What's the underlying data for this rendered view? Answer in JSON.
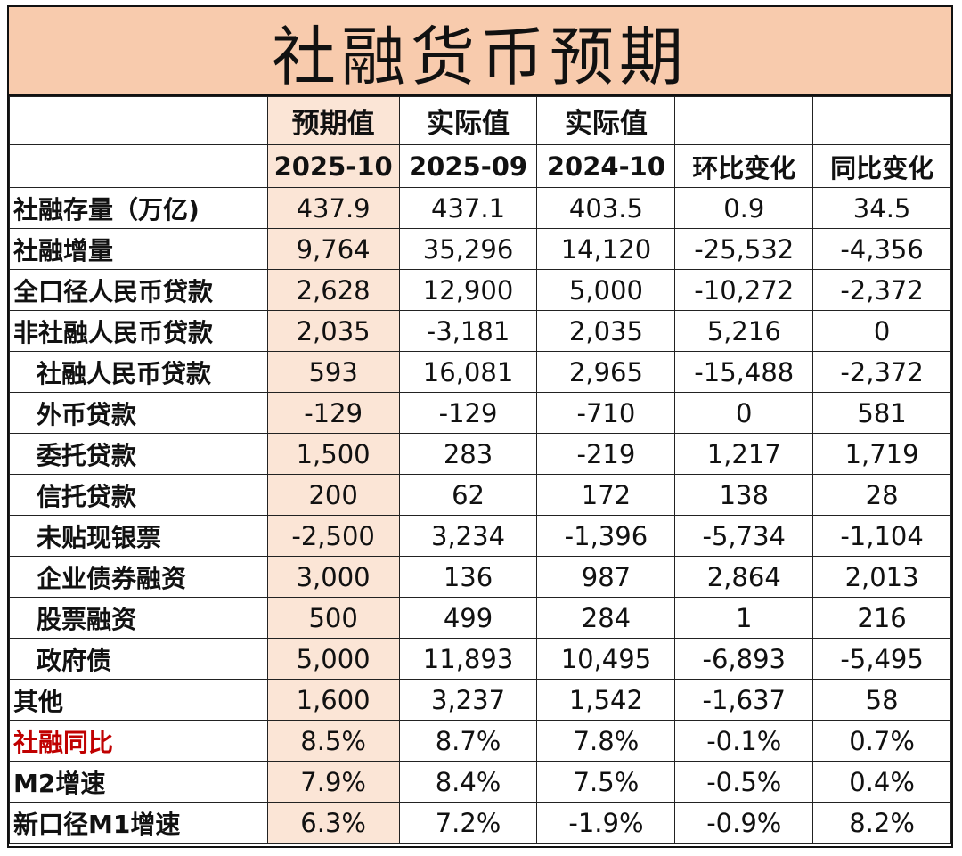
{
  "title": "社融货币预期",
  "columns": {
    "header_row1": [
      "",
      "预期值",
      "实际值",
      "实际值",
      "",
      ""
    ],
    "header_row2": [
      "",
      "2025-10",
      "2025-09",
      "2024-10",
      "环比变化",
      "同比变化"
    ]
  },
  "rows": [
    {
      "label": "社融存量（万亿)",
      "values": [
        "437.9",
        "437.1",
        "403.5",
        "0.9",
        "34.5"
      ]
    },
    {
      "label": "社融增量",
      "values": [
        "9,764",
        "35,296",
        "14,120",
        "-25,532",
        "-4,356"
      ]
    },
    {
      "label": "全口径人民币贷款",
      "values": [
        "2,628",
        "12,900",
        "5,000",
        "-10,272",
        "-2,372"
      ]
    },
    {
      "label": "非社融人民币贷款",
      "values": [
        "2,035",
        "-3,181",
        "2,035",
        "5,216",
        "0"
      ]
    },
    {
      "label": "社融人民币贷款",
      "values": [
        "593",
        "16,081",
        "2,965",
        "-15,488",
        "-2,372"
      ]
    },
    {
      "label": "外币贷款",
      "values": [
        "-129",
        "-129",
        "-710",
        "0",
        "581"
      ]
    },
    {
      "label": "委托贷款",
      "values": [
        "1,500",
        "283",
        "-219",
        "1,217",
        "1,719"
      ]
    },
    {
      "label": "信托贷款",
      "values": [
        "200",
        "62",
        "172",
        "138",
        "28"
      ]
    },
    {
      "label": "未贴现银票",
      "values": [
        "-2,500",
        "3,234",
        "-1,396",
        "-5,734",
        "-1,104"
      ]
    },
    {
      "label": "企业债券融资",
      "values": [
        "3,000",
        "136",
        "987",
        "2,864",
        "2,013"
      ]
    },
    {
      "label": "股票融资",
      "values": [
        "500",
        "499",
        "284",
        "1",
        "216"
      ]
    },
    {
      "label": "政府债",
      "values": [
        "5,000",
        "11,893",
        "10,495",
        "-6,893",
        "-5,495"
      ]
    },
    {
      "label": "其他",
      "values": [
        "1,600",
        "3,237",
        "1,542",
        "-1,637",
        "58"
      ]
    },
    {
      "label": "社融同比",
      "values": [
        "8.5%",
        "8.7%",
        "7.8%",
        "-0.1%",
        "0.7%"
      ]
    },
    {
      "label": "M2增速",
      "values": [
        "7.9%",
        "8.4%",
        "7.5%",
        "-0.5%",
        "0.4%"
      ]
    },
    {
      "label": "新口径M1增速",
      "values": [
        "6.3%",
        "7.2%",
        "-1.9%",
        "-0.9%",
        "8.2%"
      ]
    }
  ],
  "colors": {
    "title_bg": "#f8cbad",
    "expected_col_bg": "#fbe5d6",
    "highlight_text": "#c00000"
  }
}
